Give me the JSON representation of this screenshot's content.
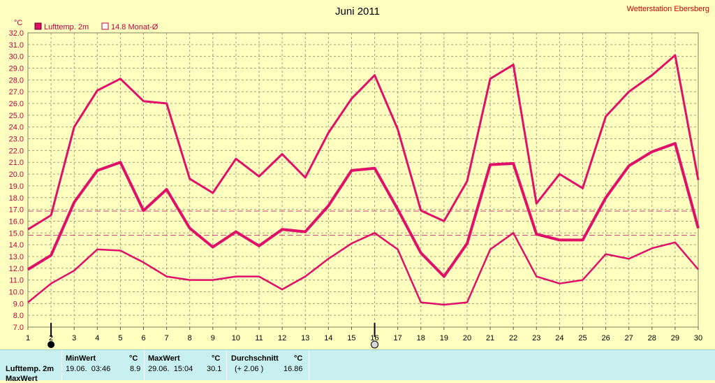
{
  "title": "Juni 2011",
  "station": "Wetterstation Ebersberg",
  "unit": "°C",
  "legend": [
    {
      "label": "Lufttemp. 2m",
      "color": "#e0106a",
      "filled": true
    },
    {
      "label": "14.8 Monat-Ø",
      "color": "#c00040",
      "filled": false
    }
  ],
  "colors": {
    "series": "#e0106a",
    "reference": "#c04080",
    "grid": "#a0a080",
    "axis_text": "#c00040"
  },
  "chart_data": {
    "type": "line",
    "title": "Juni 2011",
    "ylabel": "°C",
    "xlabel": "",
    "ylim": [
      7.0,
      32.0
    ],
    "ytick_step": 1.0,
    "x": [
      1,
      2,
      3,
      4,
      5,
      6,
      7,
      8,
      9,
      10,
      11,
      12,
      13,
      14,
      15,
      16,
      17,
      18,
      19,
      20,
      21,
      22,
      23,
      24,
      25,
      26,
      27,
      28,
      29,
      30
    ],
    "grid": true,
    "legend_position": "top-left",
    "series": [
      {
        "role": "max",
        "values": [
          15.3,
          16.5,
          24.0,
          27.1,
          28.1,
          26.2,
          26.0,
          19.6,
          18.4,
          21.3,
          19.8,
          21.7,
          19.7,
          23.5,
          26.4,
          28.4,
          23.8,
          16.9,
          16.0,
          19.4,
          28.1,
          29.3,
          17.5,
          20.0,
          18.8,
          24.9,
          27.0,
          28.4,
          30.1,
          19.5
        ]
      },
      {
        "role": "mean",
        "values": [
          11.9,
          13.1,
          17.6,
          20.3,
          21.0,
          16.9,
          18.7,
          15.4,
          13.8,
          15.1,
          13.9,
          15.3,
          15.1,
          17.3,
          20.3,
          20.5,
          17.0,
          13.3,
          11.3,
          14.1,
          20.8,
          20.9,
          14.9,
          14.4,
          14.4,
          18.0,
          20.7,
          21.9,
          22.6,
          15.4
        ]
      },
      {
        "role": "min",
        "values": [
          9.1,
          10.7,
          11.8,
          13.6,
          13.5,
          12.5,
          11.3,
          11.0,
          11.0,
          11.3,
          11.3,
          10.2,
          11.3,
          12.8,
          14.1,
          15.0,
          13.6,
          9.1,
          8.9,
          9.1,
          13.6,
          15.0,
          11.3,
          10.7,
          11.0,
          13.2,
          12.8,
          13.7,
          14.2,
          11.9
        ]
      }
    ],
    "reference_lines": [
      16.86,
      14.8
    ],
    "markers": [
      {
        "x": 2,
        "style": "filled"
      },
      {
        "x": 16,
        "style": "open"
      }
    ]
  },
  "stats": {
    "row_label": "Lufttemp. 2m",
    "row2_label": "MaxWert",
    "min": {
      "header": "MinWert",
      "unit": "°C",
      "date": "19.06.  03:46",
      "value": "8.9"
    },
    "max": {
      "header": "MaxWert",
      "unit": "°C",
      "date": "29.06.  15:04",
      "value": "30.1"
    },
    "avg": {
      "header": "Durchschnitt",
      "unit": "°C",
      "delta": "(+ 2.06 )",
      "value": "16.86"
    }
  }
}
